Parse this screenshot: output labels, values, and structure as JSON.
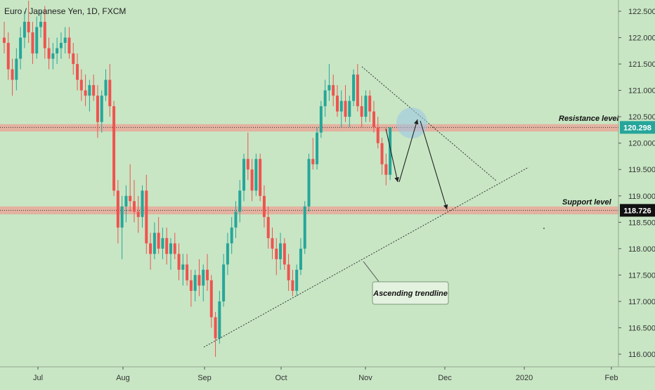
{
  "header": {
    "title": "Euro / Japanese Yen, 1D, FXCM"
  },
  "colors": {
    "background": "#c8e6c4",
    "up_candle": "#26a69a",
    "down_candle": "#ef5350",
    "zone": "#e8a89a",
    "price_badge_resistance": "#26a69a",
    "price_badge_support": "#111111"
  },
  "chart_data": {
    "type": "candlestick",
    "title": "Euro / Japanese Yen, 1D, FXCM",
    "ylim": [
      115.9,
      122.7
    ],
    "y_ticks": [
      "122.500",
      "122.000",
      "121.500",
      "121.000",
      "120.500",
      "120.000",
      "119.500",
      "119.000",
      "118.500",
      "118.000",
      "117.500",
      "117.000",
      "116.500",
      "116.000"
    ],
    "x_ticks": [
      "Jul",
      "Aug",
      "Sep",
      "Oct",
      "Nov",
      "Dec",
      "2020",
      "Feb"
    ],
    "resistance": {
      "label": "Resistance level",
      "price": 120.298,
      "price_label": "120.298",
      "zone": [
        120.22,
        120.36
      ]
    },
    "support": {
      "label": "Support level",
      "price": 118.726,
      "price_label": "118.726",
      "zone": [
        118.65,
        118.8
      ]
    },
    "trendline_label": "Ascending trendline",
    "candles": [
      [
        122.0,
        122.3,
        121.7,
        121.9
      ],
      [
        121.9,
        122.1,
        121.2,
        121.4
      ],
      [
        121.4,
        121.6,
        120.9,
        121.2
      ],
      [
        121.2,
        121.8,
        121.0,
        121.6
      ],
      [
        121.6,
        122.2,
        121.4,
        122.0
      ],
      [
        122.0,
        122.5,
        121.8,
        122.3
      ],
      [
        122.3,
        122.7,
        121.9,
        122.1
      ],
      [
        122.1,
        122.3,
        121.5,
        121.7
      ],
      [
        121.7,
        122.4,
        121.6,
        122.2
      ],
      [
        122.2,
        122.5,
        122.0,
        122.3
      ],
      [
        122.3,
        122.6,
        121.6,
        121.8
      ],
      [
        121.8,
        122.0,
        121.4,
        121.6
      ],
      [
        121.6,
        121.9,
        121.4,
        121.7
      ],
      [
        121.7,
        122.0,
        121.5,
        121.8
      ],
      [
        121.8,
        122.1,
        121.6,
        121.9
      ],
      [
        121.9,
        122.2,
        121.7,
        122.0
      ],
      [
        122.0,
        122.2,
        121.6,
        121.7
      ],
      [
        121.7,
        121.9,
        121.3,
        121.5
      ],
      [
        121.5,
        121.7,
        121.0,
        121.2
      ],
      [
        121.2,
        121.4,
        120.8,
        121.0
      ],
      [
        121.0,
        121.3,
        120.7,
        120.9
      ],
      [
        120.9,
        121.2,
        120.6,
        121.1
      ],
      [
        121.1,
        121.3,
        120.8,
        120.9
      ],
      [
        120.9,
        121.1,
        120.1,
        120.4
      ],
      [
        120.4,
        121.0,
        120.2,
        120.9
      ],
      [
        120.9,
        121.4,
        120.8,
        121.2
      ],
      [
        121.2,
        121.5,
        120.5,
        120.7
      ],
      [
        120.7,
        120.8,
        119.0,
        119.1
      ],
      [
        119.1,
        119.3,
        118.1,
        118.4
      ],
      [
        118.4,
        119.0,
        117.8,
        118.8
      ],
      [
        118.8,
        119.2,
        118.5,
        119.0
      ],
      [
        119.0,
        119.6,
        118.7,
        118.9
      ],
      [
        118.9,
        119.3,
        118.5,
        118.7
      ],
      [
        118.7,
        119.0,
        118.3,
        118.6
      ],
      [
        118.6,
        119.2,
        118.4,
        119.1
      ],
      [
        119.1,
        119.4,
        117.9,
        118.1
      ],
      [
        118.1,
        118.3,
        117.6,
        117.9
      ],
      [
        117.9,
        118.5,
        117.8,
        118.3
      ],
      [
        118.3,
        118.6,
        117.9,
        118.0
      ],
      [
        118.0,
        118.4,
        117.8,
        118.2
      ],
      [
        118.2,
        118.4,
        117.7,
        117.9
      ],
      [
        117.9,
        118.2,
        117.6,
        118.1
      ],
      [
        118.1,
        118.3,
        117.8,
        117.9
      ],
      [
        117.9,
        118.1,
        117.4,
        117.6
      ],
      [
        117.6,
        117.9,
        117.3,
        117.7
      ],
      [
        117.7,
        117.9,
        117.3,
        117.4
      ],
      [
        117.4,
        117.6,
        116.9,
        117.2
      ],
      [
        117.2,
        117.6,
        117.0,
        117.5
      ],
      [
        117.5,
        117.8,
        117.1,
        117.3
      ],
      [
        117.3,
        117.7,
        117.0,
        117.6
      ],
      [
        117.6,
        117.9,
        117.2,
        117.4
      ],
      [
        117.4,
        117.5,
        116.5,
        116.7
      ],
      [
        116.7,
        116.8,
        115.95,
        116.3
      ],
      [
        116.3,
        117.2,
        116.2,
        117.0
      ],
      [
        117.0,
        117.9,
        116.9,
        117.7
      ],
      [
        117.7,
        118.3,
        117.5,
        118.1
      ],
      [
        118.1,
        118.6,
        117.9,
        118.4
      ],
      [
        118.4,
        118.9,
        118.2,
        118.7
      ],
      [
        118.7,
        119.3,
        118.5,
        119.1
      ],
      [
        119.1,
        119.8,
        118.9,
        119.7
      ],
      [
        119.7,
        120.2,
        119.3,
        119.5
      ],
      [
        119.5,
        119.7,
        118.9,
        119.1
      ],
      [
        119.1,
        119.8,
        119.0,
        119.7
      ],
      [
        119.7,
        119.8,
        118.9,
        119.0
      ],
      [
        119.0,
        119.2,
        118.4,
        118.6
      ],
      [
        118.6,
        118.8,
        118.0,
        118.2
      ],
      [
        118.2,
        118.4,
        117.8,
        118.0
      ],
      [
        118.0,
        118.2,
        117.5,
        117.8
      ],
      [
        117.8,
        118.3,
        117.6,
        118.1
      ],
      [
        118.1,
        118.2,
        117.6,
        117.7
      ],
      [
        117.7,
        117.9,
        117.2,
        117.4
      ],
      [
        117.4,
        117.6,
        117.1,
        117.2
      ],
      [
        117.2,
        117.7,
        117.1,
        117.6
      ],
      [
        117.6,
        118.2,
        117.5,
        118.0
      ],
      [
        118.0,
        118.9,
        117.9,
        118.8
      ],
      [
        118.8,
        119.8,
        118.7,
        119.7
      ],
      [
        119.7,
        120.1,
        119.5,
        119.6
      ],
      [
        119.6,
        120.3,
        119.5,
        120.2
      ],
      [
        120.2,
        120.8,
        120.1,
        120.7
      ],
      [
        120.7,
        121.2,
        120.5,
        121.0
      ],
      [
        121.0,
        121.5,
        120.8,
        121.1
      ],
      [
        121.1,
        121.3,
        120.7,
        120.9
      ],
      [
        120.9,
        121.1,
        120.5,
        120.6
      ],
      [
        120.6,
        121.0,
        120.3,
        120.8
      ],
      [
        120.8,
        121.1,
        120.4,
        120.5
      ],
      [
        120.5,
        120.9,
        120.3,
        120.8
      ],
      [
        120.8,
        121.4,
        120.7,
        121.3
      ],
      [
        121.3,
        121.5,
        120.6,
        120.7
      ],
      [
        120.7,
        120.9,
        120.3,
        120.5
      ],
      [
        120.5,
        121.0,
        120.4,
        120.9
      ],
      [
        120.9,
        121.0,
        120.4,
        120.6
      ],
      [
        120.6,
        120.8,
        120.2,
        120.3
      ],
      [
        120.3,
        120.5,
        119.9,
        120.0
      ],
      [
        120.0,
        120.1,
        119.4,
        119.6
      ],
      [
        119.6,
        119.8,
        119.2,
        119.4
      ],
      [
        119.4,
        120.3,
        119.3,
        120.3
      ]
    ]
  }
}
